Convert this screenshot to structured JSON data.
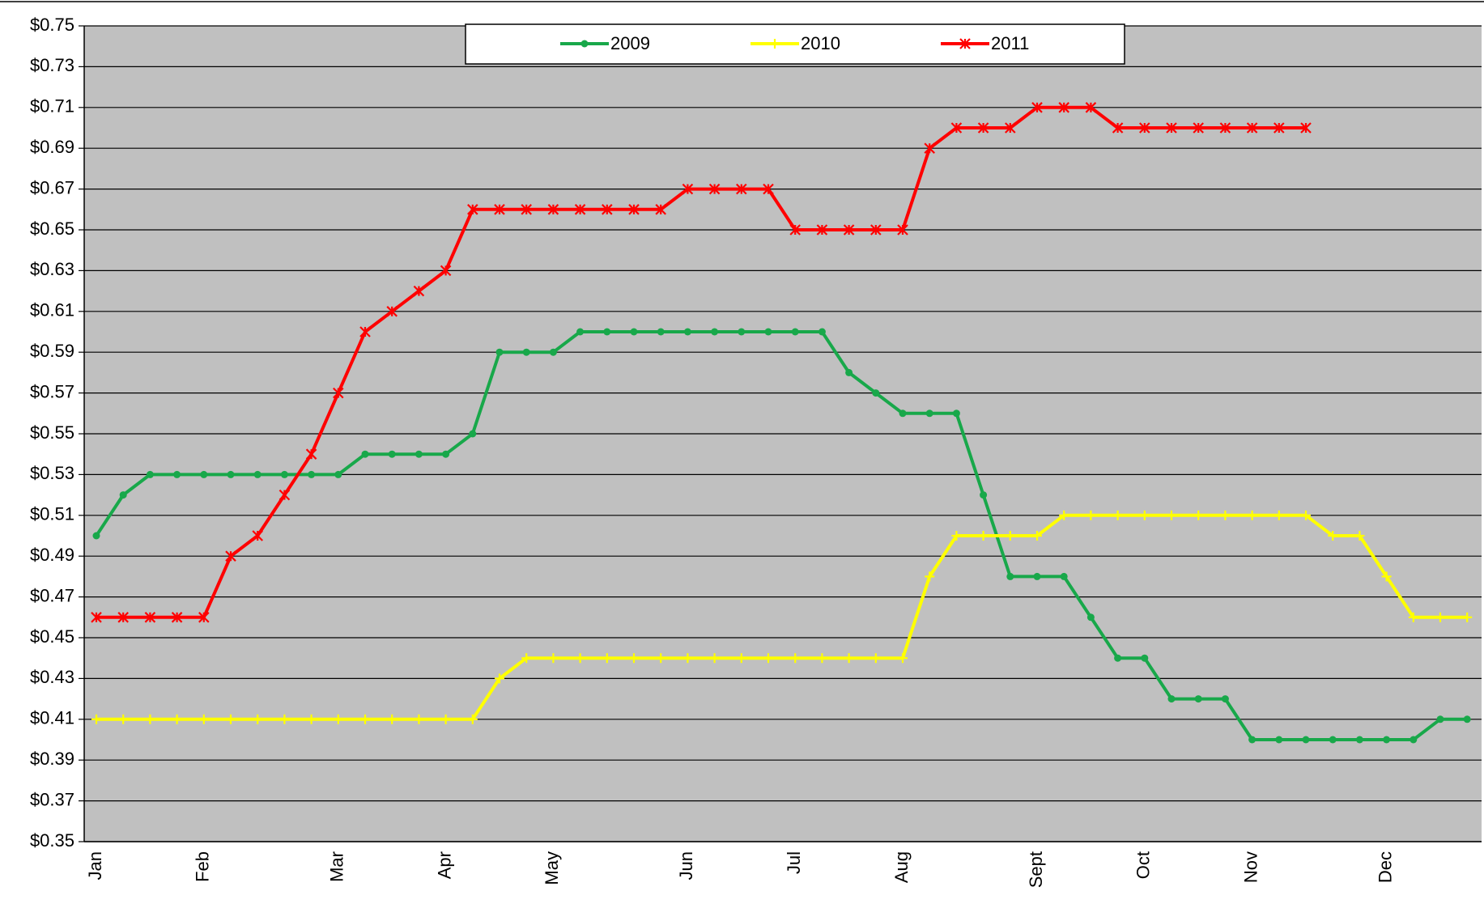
{
  "chart_data": {
    "type": "line",
    "categories": [
      "Jan",
      null,
      null,
      null,
      "Feb",
      null,
      null,
      null,
      null,
      "Mar",
      null,
      null,
      null,
      "Apr",
      null,
      null,
      null,
      "May",
      null,
      null,
      null,
      null,
      "Jun",
      null,
      null,
      null,
      "Jul",
      null,
      null,
      null,
      "Aug",
      null,
      null,
      null,
      null,
      "Sept",
      null,
      null,
      null,
      "Oct",
      null,
      null,
      null,
      "Nov",
      null,
      null,
      null,
      null,
      "Dec",
      null,
      null,
      null
    ],
    "series": [
      {
        "name": "2009",
        "color": "#18a84a",
        "marker": "circle",
        "values": [
          0.5,
          0.52,
          0.53,
          0.53,
          0.53,
          0.53,
          0.53,
          0.53,
          0.53,
          0.53,
          0.54,
          0.54,
          0.54,
          0.54,
          0.55,
          0.59,
          0.59,
          0.59,
          0.6,
          0.6,
          0.6,
          0.6,
          0.6,
          0.6,
          0.6,
          0.6,
          0.6,
          0.6,
          0.58,
          0.57,
          0.56,
          0.56,
          0.56,
          0.52,
          0.48,
          0.48,
          0.48,
          0.46,
          0.44,
          0.44,
          0.42,
          0.42,
          0.42,
          0.4,
          0.4,
          0.4,
          0.4,
          0.4,
          0.4,
          0.4,
          0.41,
          0.41
        ]
      },
      {
        "name": "2010",
        "color": "#ffff00",
        "marker": "plus",
        "values": [
          0.41,
          0.41,
          0.41,
          0.41,
          0.41,
          0.41,
          0.41,
          0.41,
          0.41,
          0.41,
          0.41,
          0.41,
          0.41,
          0.41,
          0.41,
          0.43,
          0.44,
          0.44,
          0.44,
          0.44,
          0.44,
          0.44,
          0.44,
          0.44,
          0.44,
          0.44,
          0.44,
          0.44,
          0.44,
          0.44,
          0.44,
          0.48,
          0.5,
          0.5,
          0.5,
          0.5,
          0.51,
          0.51,
          0.51,
          0.51,
          0.51,
          0.51,
          0.51,
          0.51,
          0.51,
          0.51,
          0.5,
          0.5,
          0.48,
          0.46,
          0.46,
          0.46
        ]
      },
      {
        "name": "2011",
        "color": "#ff0000",
        "marker": "star",
        "values": [
          0.46,
          0.46,
          0.46,
          0.46,
          0.46,
          0.49,
          0.5,
          0.52,
          0.54,
          0.57,
          0.6,
          0.61,
          0.62,
          0.63,
          0.66,
          0.66,
          0.66,
          0.66,
          0.66,
          0.66,
          0.66,
          0.66,
          0.67,
          0.67,
          0.67,
          0.67,
          0.65,
          0.65,
          0.65,
          0.65,
          0.65,
          0.69,
          0.7,
          0.7,
          0.7,
          0.71,
          0.71,
          0.71,
          0.7,
          0.7,
          0.7,
          0.7,
          0.7,
          0.7,
          0.7,
          0.7,
          null,
          null,
          null,
          null,
          null,
          null
        ]
      }
    ],
    "ylim": [
      0.35,
      0.75
    ],
    "yticks": [
      {
        "value": 0.35,
        "label": "$0.35"
      },
      {
        "value": 0.37,
        "label": "$0.37"
      },
      {
        "value": 0.39,
        "label": "$0.39"
      },
      {
        "value": 0.41,
        "label": "$0.41"
      },
      {
        "value": 0.43,
        "label": "$0.43"
      },
      {
        "value": 0.45,
        "label": "$0.45"
      },
      {
        "value": 0.47,
        "label": "$0.47"
      },
      {
        "value": 0.49,
        "label": "$0.49"
      },
      {
        "value": 0.51,
        "label": "$0.51"
      },
      {
        "value": 0.53,
        "label": "$0.53"
      },
      {
        "value": 0.55,
        "label": "$0.55"
      },
      {
        "value": 0.57,
        "label": "$0.57"
      },
      {
        "value": 0.59,
        "label": "$0.59"
      },
      {
        "value": 0.61,
        "label": "$0.61"
      },
      {
        "value": 0.63,
        "label": "$0.63"
      },
      {
        "value": 0.65,
        "label": "$0.65"
      },
      {
        "value": 0.67,
        "label": "$0.67"
      },
      {
        "value": 0.69,
        "label": "$0.69"
      },
      {
        "value": 0.71,
        "label": "$0.71"
      },
      {
        "value": 0.73,
        "label": "$0.73"
      },
      {
        "value": 0.75,
        "label": "$0.75"
      }
    ],
    "grid": true,
    "legend": "top",
    "plot_background": "#c0c0c0"
  }
}
